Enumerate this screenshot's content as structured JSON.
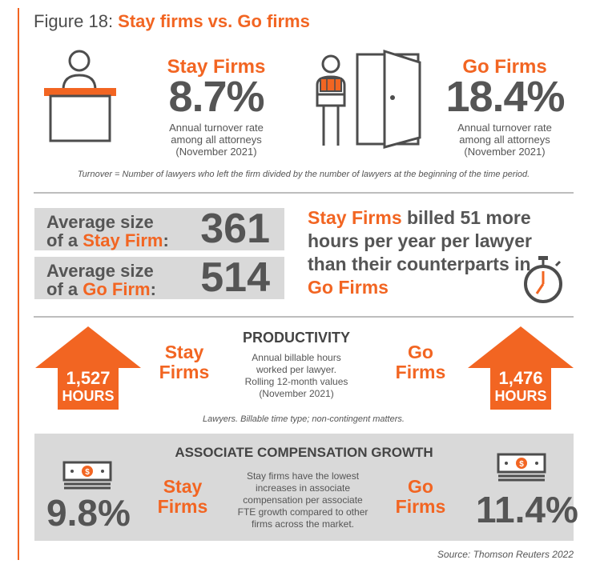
{
  "title": {
    "prefix": "Figure 18: ",
    "highlight": "Stay firms vs. Go firms"
  },
  "stay": {
    "name": "Stay Firms",
    "rate": "8.7%",
    "caption_lines": [
      "Annual turnover rate",
      "among all attorneys",
      "(November 2021)"
    ]
  },
  "go": {
    "name": "Go Firms",
    "rate": "18.4%",
    "caption_lines": [
      "Annual turnover rate",
      "among all attorneys",
      "(November 2021)"
    ]
  },
  "turnover_note": "Turnover = Number of lawyers who left the firm divided by the number of lawyers at the beginning of the time period.",
  "size": {
    "stay": {
      "line1": "Average size",
      "line2_prefix": "of a ",
      "line2_firm": "Stay Firm",
      "line2_suffix": ":",
      "value": "361"
    },
    "go": {
      "line1": "Average size",
      "line2_prefix": "of a ",
      "line2_firm": "Go Firm",
      "line2_suffix": ":",
      "value": "514"
    }
  },
  "billed": {
    "firm1": "Stay Firms",
    "text1": " billed 51 more hours per year per lawyer than their counterparts in ",
    "firm2": "Go Firms"
  },
  "productivity": {
    "title": "PRODUCTIVITY",
    "desc_lines": [
      "Annual billable hours",
      "worked per lawyer.",
      "Rolling 12-month values",
      "(November 2021)"
    ],
    "stay_label_lines": [
      "Stay",
      "Firms"
    ],
    "go_label_lines": [
      "Go",
      "Firms"
    ],
    "stay_hours": "1,527",
    "go_hours": "1,476",
    "hours_unit": "HOURS",
    "note": "Lawyers. Billable time type; non-contingent matters."
  },
  "compensation": {
    "title": "ASSOCIATE COMPENSATION GROWTH",
    "stay_label_lines": [
      "Stay",
      "Firms"
    ],
    "go_label_lines": [
      "Go",
      "Firms"
    ],
    "stay_pct": "9.8%",
    "go_pct": "11.4%",
    "desc_lines": [
      "Stay firms have the lowest",
      "increases in associate",
      "compensation per associate",
      "FTE growth compared to other",
      "firms across the market."
    ]
  },
  "source": "Source: Thomson Reuters 2022",
  "colors": {
    "accent": "#f26522",
    "text": "#4d4d4d",
    "panel": "#d9d9d9"
  },
  "icons": [
    "person-at-desk-icon",
    "person-carrying-box-icon",
    "open-door-icon",
    "stopwatch-icon",
    "up-arrow-icon",
    "money-stack-icon"
  ]
}
